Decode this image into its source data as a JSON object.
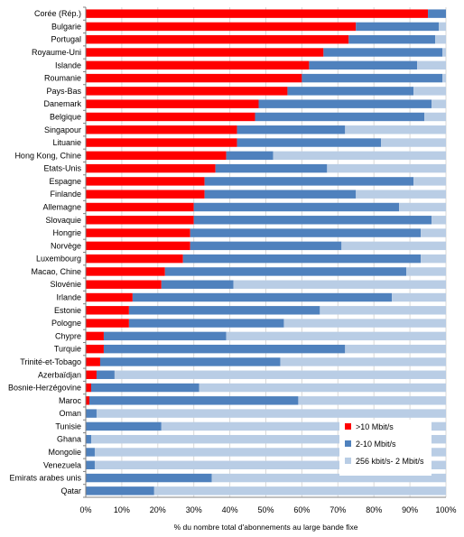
{
  "chart_data": {
    "type": "bar",
    "orientation": "horizontal",
    "stacked": true,
    "xlabel": "% du nombre total d'abonnements au large bande fixe",
    "ylabel": "",
    "xlim": [
      0,
      100
    ],
    "x_ticks": [
      "0%",
      "10%",
      "20%",
      "30%",
      "40%",
      "50%",
      "60%",
      "70%",
      "80%",
      "90%",
      "100%"
    ],
    "grid": "vertical",
    "legend_position": "bottom-right",
    "categories": [
      "Corée (Rép.)",
      "Bulgarie",
      "Portugal",
      "Royaume-Uni",
      "Islande",
      "Roumanie",
      "Pays-Bas",
      "Danemark",
      "Belgique",
      "Singapour",
      "Lituanie",
      "Hong Kong, Chine",
      "Etats-Unis",
      "Espagne",
      "Finlande",
      "Allemagne",
      "Slovaquie",
      "Hongrie",
      "Norvège",
      "Luxembourg",
      "Macao, Chine",
      "Slovénie",
      "Irlande",
      "Estonie",
      "Pologne",
      "Chypre",
      "Turquie",
      "Trinité-et-Tobago",
      "Azerbaïdjan",
      "Bosnie-Herzégovine",
      "Maroc",
      "Oman",
      "Tunisie",
      "Ghana",
      "Mongolie",
      "Venezuela",
      "Emirats arabes unis",
      "Qatar"
    ],
    "series": [
      {
        "name": ">10 Mbit/s",
        "color": "#ff0000",
        "values": [
          95,
          75,
          73,
          66,
          62,
          60,
          56,
          48,
          47,
          42,
          42,
          39,
          36,
          33,
          33,
          30,
          30,
          29,
          29,
          27,
          22,
          21,
          13,
          12,
          12,
          5,
          5,
          4,
          3,
          1.5,
          1,
          0,
          0,
          0,
          0,
          0,
          0,
          0
        ]
      },
      {
        "name": "2-10 Mbit/s",
        "color": "#4f81bd",
        "values": [
          5,
          23,
          24,
          33,
          30,
          39,
          35,
          48,
          47,
          30,
          40,
          13,
          31,
          58,
          42,
          57,
          66,
          64,
          42,
          66,
          67,
          20,
          72,
          53,
          43,
          34,
          67,
          50,
          5,
          30,
          58,
          3,
          21,
          1.5,
          2.5,
          2.5,
          35,
          19
        ]
      },
      {
        "name": "256 kbit/s- 2 Mbit/s",
        "color": "#b9cde5",
        "values": [
          0,
          2,
          3,
          1,
          8,
          1,
          9,
          4,
          6,
          28,
          18,
          48,
          33,
          9,
          25,
          13,
          4,
          7,
          29,
          7,
          11,
          59,
          15,
          35,
          45,
          61,
          28,
          46,
          92,
          68.5,
          41,
          97,
          79,
          98.5,
          97.5,
          97.5,
          65,
          81
        ]
      }
    ]
  }
}
